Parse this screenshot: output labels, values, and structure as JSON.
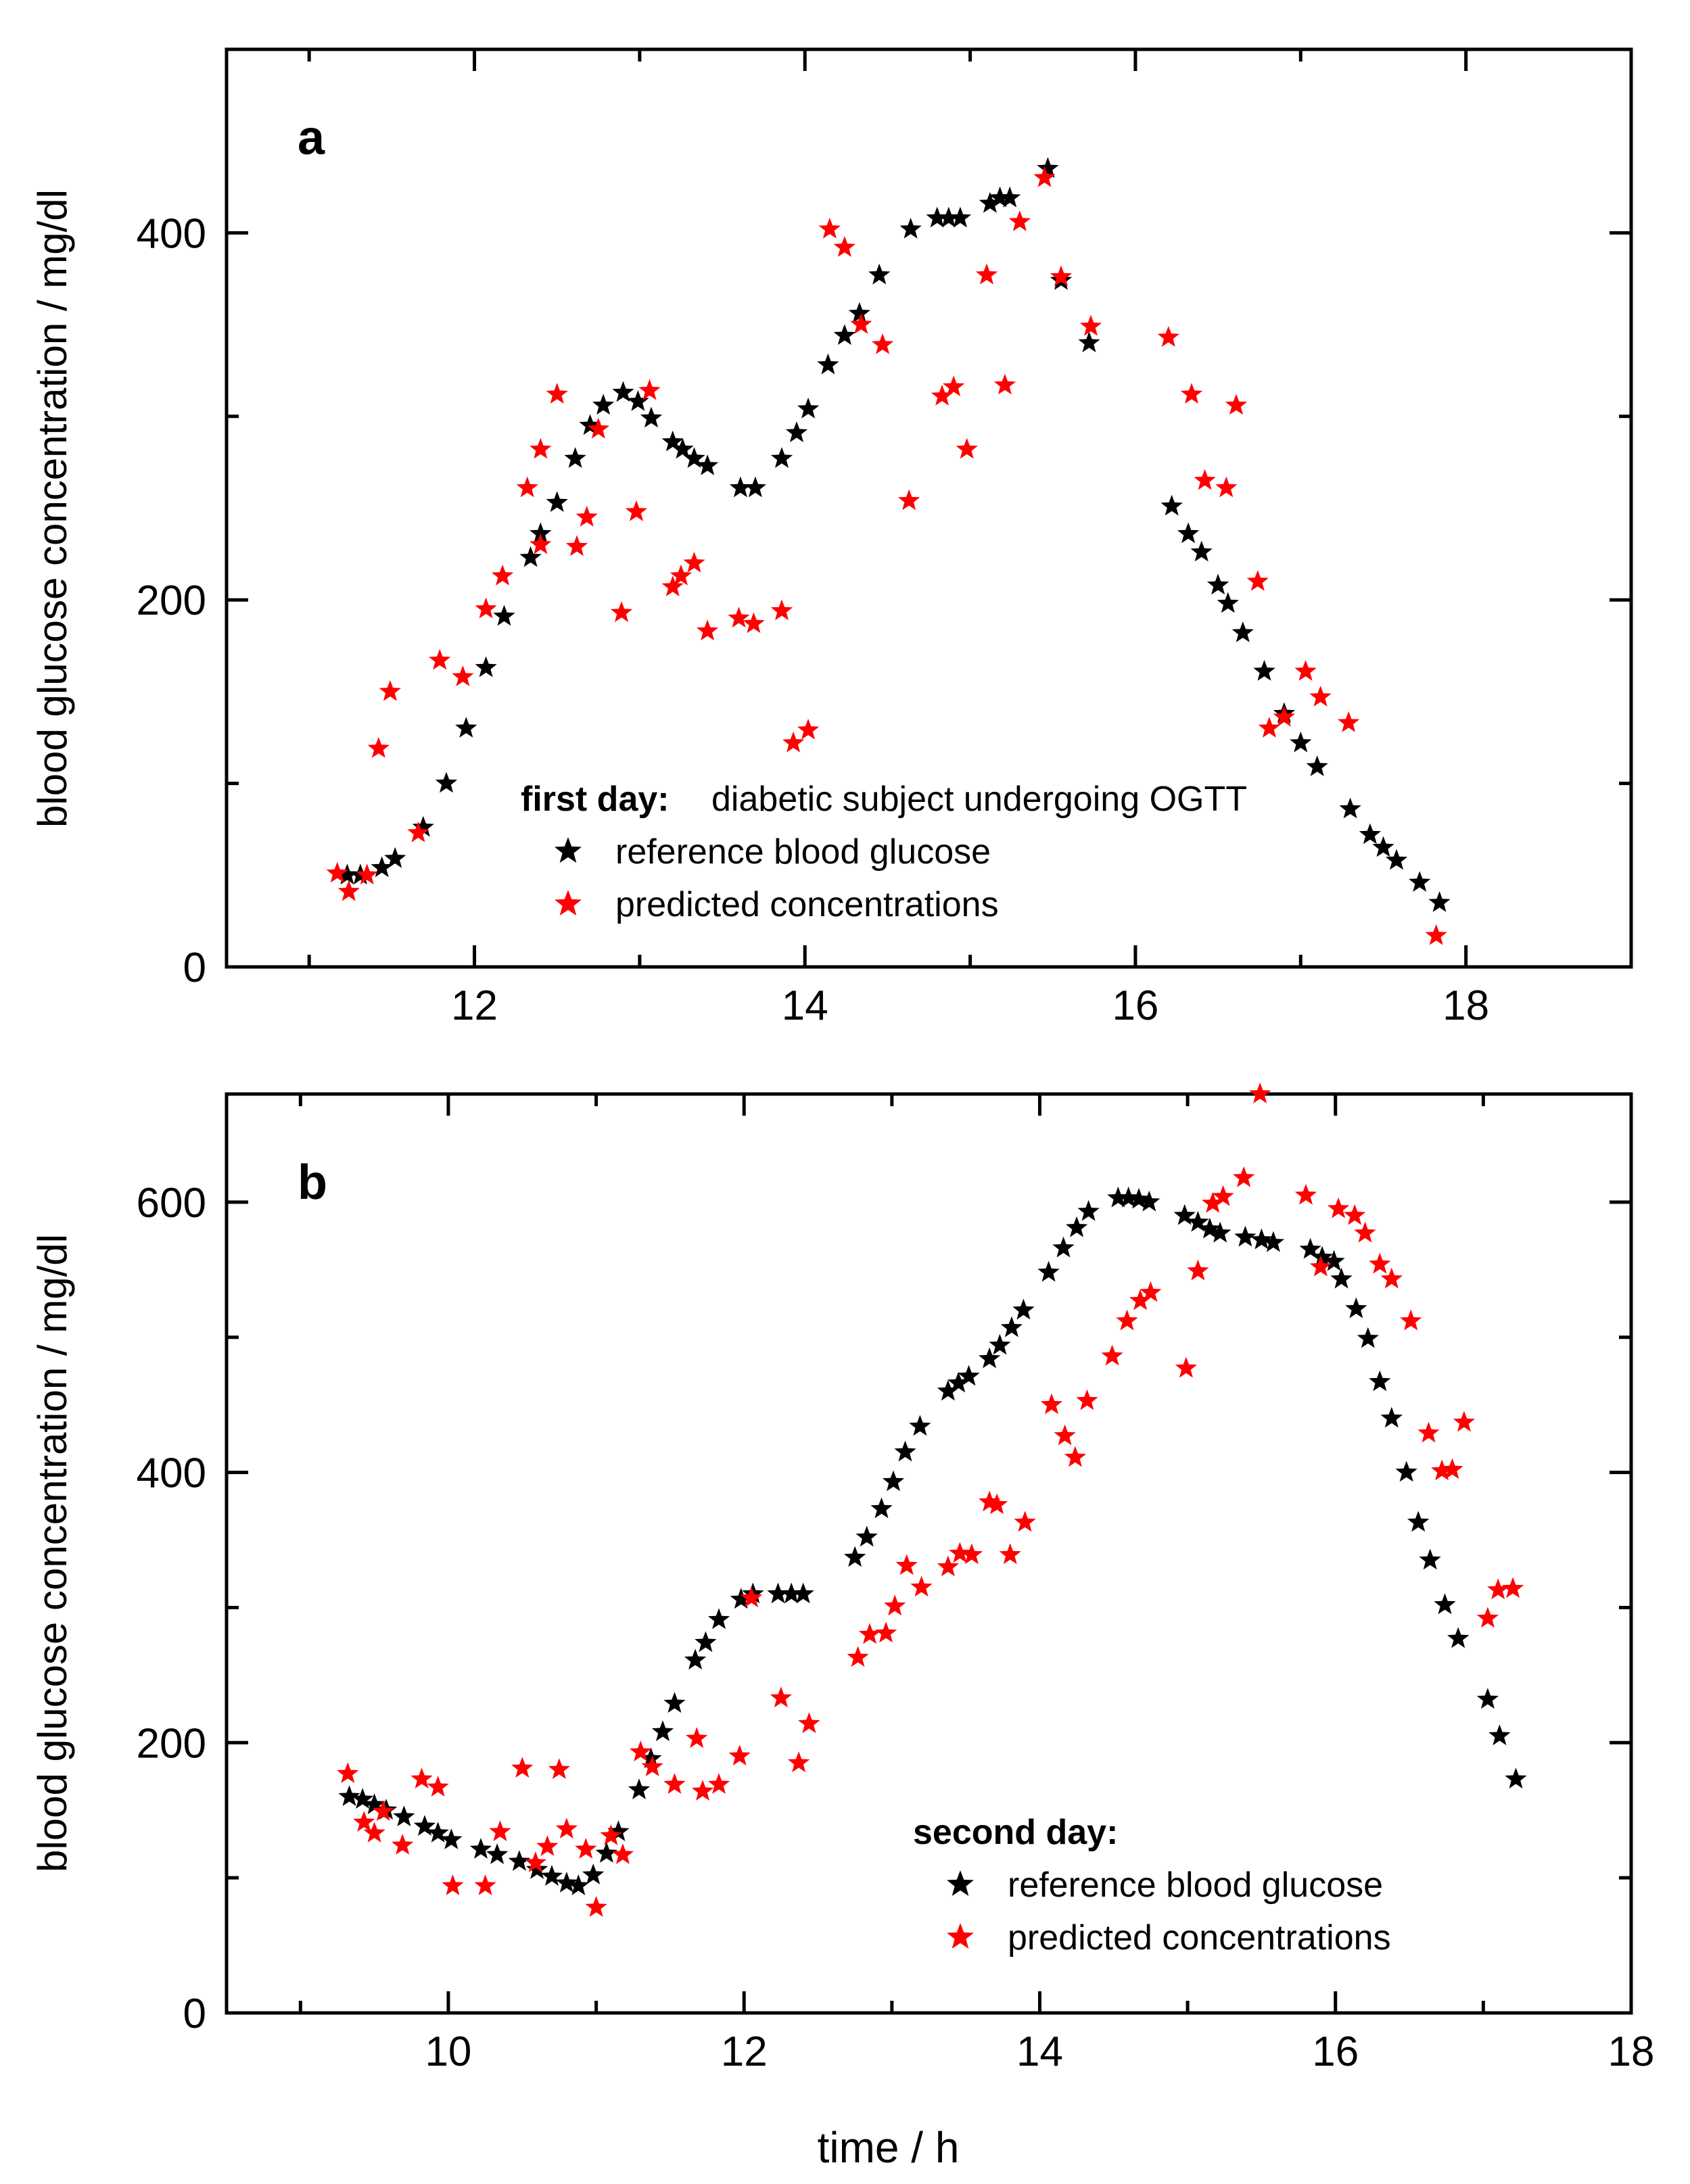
{
  "figure": {
    "xlabel": "time  /  h",
    "colors": {
      "reference": "#000000",
      "predicted": "#ff0000",
      "axes": "#000000"
    }
  },
  "chart_data": [
    {
      "type": "scatter",
      "panel_label": "a",
      "ylabel": "blood glucose concentration /  mg/dl",
      "xlim": [
        10.5,
        19.0
      ],
      "ylim": [
        0,
        500
      ],
      "xticks": [
        12,
        14,
        16,
        18
      ],
      "yticks": [
        0,
        200,
        400
      ],
      "legend": {
        "title": "first day:",
        "subtitle": "diabetic subject undergoing OGTT",
        "placement": "bottom-center",
        "entries": [
          "reference blood glucose",
          "predicted concentrations"
        ]
      },
      "series": [
        {
          "name": "reference blood glucose",
          "color": "#000000",
          "points": [
            [
              11.23,
              50
            ],
            [
              11.31,
              50
            ],
            [
              11.44,
              54
            ],
            [
              11.52,
              59
            ],
            [
              11.69,
              76
            ],
            [
              11.83,
              100
            ],
            [
              11.95,
              130
            ],
            [
              12.07,
              163
            ],
            [
              12.18,
              191
            ],
            [
              12.34,
              223
            ],
            [
              12.4,
              236
            ],
            [
              12.5,
              253
            ],
            [
              12.61,
              277
            ],
            [
              12.7,
              295
            ],
            [
              12.78,
              306
            ],
            [
              12.9,
              313
            ],
            [
              12.99,
              308
            ],
            [
              13.07,
              299
            ],
            [
              13.2,
              286
            ],
            [
              13.26,
              282
            ],
            [
              13.33,
              277
            ],
            [
              13.41,
              273
            ],
            [
              13.61,
              261
            ],
            [
              13.7,
              261
            ],
            [
              13.86,
              277
            ],
            [
              13.95,
              291
            ],
            [
              14.02,
              304
            ],
            [
              14.14,
              328
            ],
            [
              14.24,
              344
            ],
            [
              14.33,
              356
            ],
            [
              14.45,
              377
            ],
            [
              14.64,
              402
            ],
            [
              14.8,
              408
            ],
            [
              14.87,
              408
            ],
            [
              14.94,
              408
            ],
            [
              15.12,
              416
            ],
            [
              15.18,
              419
            ],
            [
              15.24,
              419
            ],
            [
              15.47,
              435
            ],
            [
              15.55,
              374
            ],
            [
              15.72,
              340
            ],
            [
              16.22,
              251
            ],
            [
              16.32,
              236
            ],
            [
              16.4,
              226
            ],
            [
              16.5,
              208
            ],
            [
              16.56,
              198
            ],
            [
              16.65,
              182
            ],
            [
              16.78,
              161
            ],
            [
              16.9,
              138
            ],
            [
              17.0,
              122
            ],
            [
              17.1,
              109
            ],
            [
              17.3,
              86
            ],
            [
              17.42,
              72
            ],
            [
              17.5,
              65
            ],
            [
              17.58,
              58
            ],
            [
              17.72,
              46
            ],
            [
              17.84,
              35
            ]
          ]
        },
        {
          "name": "predicted concentrations",
          "color": "#ff0000",
          "points": [
            [
              11.17,
              51
            ],
            [
              11.24,
              41
            ],
            [
              11.35,
              50
            ],
            [
              11.42,
              119
            ],
            [
              11.49,
              150
            ],
            [
              11.66,
              73
            ],
            [
              11.79,
              167
            ],
            [
              11.93,
              158
            ],
            [
              12.07,
              195
            ],
            [
              12.17,
              213
            ],
            [
              12.32,
              261
            ],
            [
              12.4,
              282
            ],
            [
              12.5,
              312
            ],
            [
              12.4,
              230
            ],
            [
              12.62,
              229
            ],
            [
              12.68,
              245
            ],
            [
              12.75,
              293
            ],
            [
              12.89,
              193
            ],
            [
              12.98,
              248
            ],
            [
              13.06,
              314
            ],
            [
              13.2,
              207
            ],
            [
              13.25,
              213
            ],
            [
              13.33,
              220
            ],
            [
              13.41,
              183
            ],
            [
              13.6,
              190
            ],
            [
              13.69,
              187
            ],
            [
              13.86,
              194
            ],
            [
              13.93,
              122
            ],
            [
              14.02,
              129
            ],
            [
              14.15,
              402
            ],
            [
              14.24,
              392
            ],
            [
              14.34,
              350
            ],
            [
              14.47,
              339
            ],
            [
              14.63,
              254
            ],
            [
              14.83,
              311
            ],
            [
              14.9,
              316
            ],
            [
              14.98,
              282
            ],
            [
              15.1,
              377
            ],
            [
              15.21,
              317
            ],
            [
              15.3,
              406
            ],
            [
              15.45,
              430
            ],
            [
              15.55,
              376
            ],
            [
              15.73,
              349
            ],
            [
              16.2,
              343
            ],
            [
              16.34,
              312
            ],
            [
              16.42,
              265
            ],
            [
              16.55,
              261
            ],
            [
              16.61,
              306
            ],
            [
              16.74,
              210
            ],
            [
              16.81,
              130
            ],
            [
              16.9,
              136
            ],
            [
              17.03,
              161
            ],
            [
              17.12,
              147
            ],
            [
              17.29,
              133
            ],
            [
              17.82,
              17
            ]
          ]
        }
      ]
    },
    {
      "type": "scatter",
      "panel_label": "b",
      "ylabel": "blood glucose concentration /  mg/dl",
      "xlabel": "time  /  h",
      "xlim": [
        8.5,
        18.0
      ],
      "ylim": [
        0,
        680
      ],
      "xticks": [
        10,
        12,
        14,
        16,
        18
      ],
      "yticks": [
        0,
        200,
        400,
        600
      ],
      "legend": {
        "title": "second day:",
        "placement": "bottom-right",
        "entries": [
          "reference blood glucose",
          "predicted concentrations"
        ]
      },
      "series": [
        {
          "name": "reference blood glucose",
          "color": "#000000",
          "points": [
            [
              9.33,
              160
            ],
            [
              9.42,
              158
            ],
            [
              9.5,
              154
            ],
            [
              9.58,
              150
            ],
            [
              9.7,
              145
            ],
            [
              9.84,
              138
            ],
            [
              9.93,
              133
            ],
            [
              10.02,
              128
            ],
            [
              10.22,
              121
            ],
            [
              10.33,
              117
            ],
            [
              10.48,
              112
            ],
            [
              10.6,
              106
            ],
            [
              10.7,
              101
            ],
            [
              10.8,
              96
            ],
            [
              10.88,
              94
            ],
            [
              10.98,
              102
            ],
            [
              11.07,
              118
            ],
            [
              11.15,
              134
            ],
            [
              11.29,
              165
            ],
            [
              11.37,
              188
            ],
            [
              11.45,
              208
            ],
            [
              11.53,
              229
            ],
            [
              11.67,
              261
            ],
            [
              11.74,
              274
            ],
            [
              11.83,
              291
            ],
            [
              11.98,
              306
            ],
            [
              12.06,
              310
            ],
            [
              12.23,
              310
            ],
            [
              12.32,
              310
            ],
            [
              12.4,
              310
            ],
            [
              12.75,
              337
            ],
            [
              12.83,
              352
            ],
            [
              12.93,
              373
            ],
            [
              13.01,
              393
            ],
            [
              13.09,
              415
            ],
            [
              13.19,
              434
            ],
            [
              13.38,
              460
            ],
            [
              13.45,
              466
            ],
            [
              13.52,
              471
            ],
            [
              13.66,
              484
            ],
            [
              13.73,
              494
            ],
            [
              13.81,
              507
            ],
            [
              13.89,
              520
            ],
            [
              14.06,
              548
            ],
            [
              14.16,
              566
            ],
            [
              14.25,
              581
            ],
            [
              14.33,
              593
            ],
            [
              14.53,
              603
            ],
            [
              14.6,
              603
            ],
            [
              14.67,
              602
            ],
            [
              14.74,
              600
            ],
            [
              14.98,
              590
            ],
            [
              15.07,
              585
            ],
            [
              15.15,
              580
            ],
            [
              15.22,
              577
            ],
            [
              15.39,
              574
            ],
            [
              15.5,
              572
            ],
            [
              15.58,
              570
            ],
            [
              15.83,
              565
            ],
            [
              15.91,
              559
            ],
            [
              15.99,
              556
            ],
            [
              16.04,
              543
            ],
            [
              16.14,
              521
            ],
            [
              16.22,
              499
            ],
            [
              16.3,
              467
            ],
            [
              16.38,
              440
            ],
            [
              16.48,
              400
            ],
            [
              16.56,
              363
            ],
            [
              16.64,
              335
            ],
            [
              16.74,
              302
            ],
            [
              16.83,
              277
            ],
            [
              17.03,
              232
            ],
            [
              17.11,
              205
            ],
            [
              17.22,
              173
            ]
          ]
        },
        {
          "name": "predicted concentrations",
          "color": "#ff0000",
          "points": [
            [
              9.32,
              177
            ],
            [
              9.43,
              141
            ],
            [
              9.5,
              133
            ],
            [
              9.56,
              149
            ],
            [
              9.69,
              124
            ],
            [
              9.82,
              173
            ],
            [
              9.93,
              167
            ],
            [
              10.03,
              94
            ],
            [
              10.25,
              94
            ],
            [
              10.35,
              134
            ],
            [
              10.5,
              181
            ],
            [
              10.59,
              111
            ],
            [
              10.67,
              123
            ],
            [
              10.75,
              180
            ],
            [
              10.8,
              136
            ],
            [
              10.93,
              121
            ],
            [
              11.0,
              78
            ],
            [
              11.1,
              131
            ],
            [
              11.18,
              117
            ],
            [
              11.3,
              193
            ],
            [
              11.38,
              182
            ],
            [
              11.53,
              169
            ],
            [
              11.68,
              203
            ],
            [
              11.72,
              164
            ],
            [
              11.83,
              169
            ],
            [
              11.97,
              190
            ],
            [
              12.05,
              307
            ],
            [
              12.25,
              233
            ],
            [
              12.37,
              185
            ],
            [
              12.44,
              214
            ],
            [
              12.77,
              263
            ],
            [
              12.85,
              280
            ],
            [
              12.96,
              281
            ],
            [
              13.02,
              301
            ],
            [
              13.1,
              331
            ],
            [
              13.2,
              315
            ],
            [
              13.38,
              330
            ],
            [
              13.46,
              340
            ],
            [
              13.54,
              339
            ],
            [
              13.66,
              378
            ],
            [
              13.71,
              376
            ],
            [
              13.8,
              339
            ],
            [
              13.9,
              363
            ],
            [
              14.08,
              450
            ],
            [
              14.17,
              427
            ],
            [
              14.24,
              411
            ],
            [
              14.32,
              453
            ],
            [
              14.49,
              486
            ],
            [
              14.59,
              512
            ],
            [
              14.68,
              527
            ],
            [
              14.75,
              533
            ],
            [
              14.99,
              477
            ],
            [
              15.07,
              549
            ],
            [
              15.17,
              599
            ],
            [
              15.24,
              604
            ],
            [
              15.38,
              618
            ],
            [
              15.49,
              680
            ],
            [
              15.8,
              605
            ],
            [
              15.9,
              552
            ],
            [
              16.02,
              595
            ],
            [
              16.13,
              590
            ],
            [
              16.2,
              577
            ],
            [
              16.3,
              554
            ],
            [
              16.38,
              543
            ],
            [
              16.51,
              512
            ],
            [
              16.63,
              429
            ],
            [
              16.72,
              401
            ],
            [
              16.79,
              402
            ],
            [
              16.87,
              437
            ],
            [
              17.03,
              292
            ],
            [
              17.1,
              313
            ],
            [
              17.2,
              314
            ]
          ]
        }
      ]
    }
  ]
}
